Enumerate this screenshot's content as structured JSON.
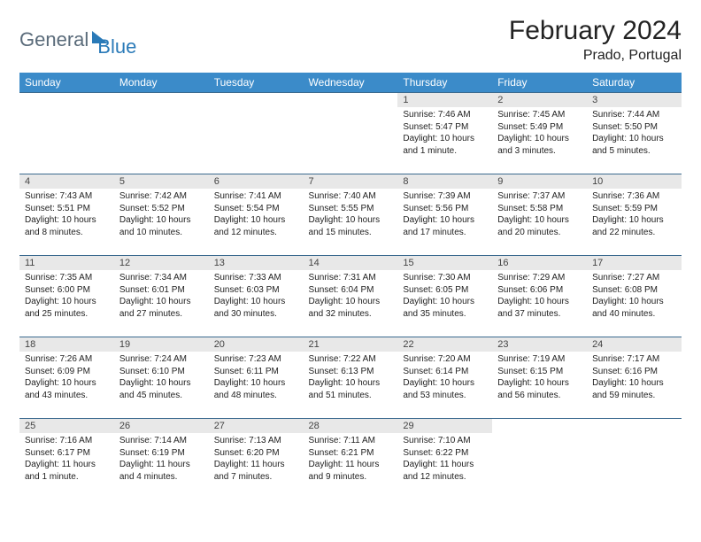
{
  "logo": {
    "part1": "General",
    "part2": "Blue"
  },
  "title": "February 2024",
  "location": "Prado, Portugal",
  "colors": {
    "header_bg": "#3b8bc9",
    "header_text": "#ffffff",
    "daynum_bg": "#e8e8e8",
    "border": "#3b6a8f",
    "logo_gray": "#5a6b7a",
    "logo_blue": "#2a7ab8"
  },
  "day_names": [
    "Sunday",
    "Monday",
    "Tuesday",
    "Wednesday",
    "Thursday",
    "Friday",
    "Saturday"
  ],
  "layout": {
    "lead_blank": 4,
    "days_in_month": 29
  },
  "days": [
    {
      "n": "1",
      "sunrise": "Sunrise: 7:46 AM",
      "sunset": "Sunset: 5:47 PM",
      "daylight": "Daylight: 10 hours and 1 minute."
    },
    {
      "n": "2",
      "sunrise": "Sunrise: 7:45 AM",
      "sunset": "Sunset: 5:49 PM",
      "daylight": "Daylight: 10 hours and 3 minutes."
    },
    {
      "n": "3",
      "sunrise": "Sunrise: 7:44 AM",
      "sunset": "Sunset: 5:50 PM",
      "daylight": "Daylight: 10 hours and 5 minutes."
    },
    {
      "n": "4",
      "sunrise": "Sunrise: 7:43 AM",
      "sunset": "Sunset: 5:51 PM",
      "daylight": "Daylight: 10 hours and 8 minutes."
    },
    {
      "n": "5",
      "sunrise": "Sunrise: 7:42 AM",
      "sunset": "Sunset: 5:52 PM",
      "daylight": "Daylight: 10 hours and 10 minutes."
    },
    {
      "n": "6",
      "sunrise": "Sunrise: 7:41 AM",
      "sunset": "Sunset: 5:54 PM",
      "daylight": "Daylight: 10 hours and 12 minutes."
    },
    {
      "n": "7",
      "sunrise": "Sunrise: 7:40 AM",
      "sunset": "Sunset: 5:55 PM",
      "daylight": "Daylight: 10 hours and 15 minutes."
    },
    {
      "n": "8",
      "sunrise": "Sunrise: 7:39 AM",
      "sunset": "Sunset: 5:56 PM",
      "daylight": "Daylight: 10 hours and 17 minutes."
    },
    {
      "n": "9",
      "sunrise": "Sunrise: 7:37 AM",
      "sunset": "Sunset: 5:58 PM",
      "daylight": "Daylight: 10 hours and 20 minutes."
    },
    {
      "n": "10",
      "sunrise": "Sunrise: 7:36 AM",
      "sunset": "Sunset: 5:59 PM",
      "daylight": "Daylight: 10 hours and 22 minutes."
    },
    {
      "n": "11",
      "sunrise": "Sunrise: 7:35 AM",
      "sunset": "Sunset: 6:00 PM",
      "daylight": "Daylight: 10 hours and 25 minutes."
    },
    {
      "n": "12",
      "sunrise": "Sunrise: 7:34 AM",
      "sunset": "Sunset: 6:01 PM",
      "daylight": "Daylight: 10 hours and 27 minutes."
    },
    {
      "n": "13",
      "sunrise": "Sunrise: 7:33 AM",
      "sunset": "Sunset: 6:03 PM",
      "daylight": "Daylight: 10 hours and 30 minutes."
    },
    {
      "n": "14",
      "sunrise": "Sunrise: 7:31 AM",
      "sunset": "Sunset: 6:04 PM",
      "daylight": "Daylight: 10 hours and 32 minutes."
    },
    {
      "n": "15",
      "sunrise": "Sunrise: 7:30 AM",
      "sunset": "Sunset: 6:05 PM",
      "daylight": "Daylight: 10 hours and 35 minutes."
    },
    {
      "n": "16",
      "sunrise": "Sunrise: 7:29 AM",
      "sunset": "Sunset: 6:06 PM",
      "daylight": "Daylight: 10 hours and 37 minutes."
    },
    {
      "n": "17",
      "sunrise": "Sunrise: 7:27 AM",
      "sunset": "Sunset: 6:08 PM",
      "daylight": "Daylight: 10 hours and 40 minutes."
    },
    {
      "n": "18",
      "sunrise": "Sunrise: 7:26 AM",
      "sunset": "Sunset: 6:09 PM",
      "daylight": "Daylight: 10 hours and 43 minutes."
    },
    {
      "n": "19",
      "sunrise": "Sunrise: 7:24 AM",
      "sunset": "Sunset: 6:10 PM",
      "daylight": "Daylight: 10 hours and 45 minutes."
    },
    {
      "n": "20",
      "sunrise": "Sunrise: 7:23 AM",
      "sunset": "Sunset: 6:11 PM",
      "daylight": "Daylight: 10 hours and 48 minutes."
    },
    {
      "n": "21",
      "sunrise": "Sunrise: 7:22 AM",
      "sunset": "Sunset: 6:13 PM",
      "daylight": "Daylight: 10 hours and 51 minutes."
    },
    {
      "n": "22",
      "sunrise": "Sunrise: 7:20 AM",
      "sunset": "Sunset: 6:14 PM",
      "daylight": "Daylight: 10 hours and 53 minutes."
    },
    {
      "n": "23",
      "sunrise": "Sunrise: 7:19 AM",
      "sunset": "Sunset: 6:15 PM",
      "daylight": "Daylight: 10 hours and 56 minutes."
    },
    {
      "n": "24",
      "sunrise": "Sunrise: 7:17 AM",
      "sunset": "Sunset: 6:16 PM",
      "daylight": "Daylight: 10 hours and 59 minutes."
    },
    {
      "n": "25",
      "sunrise": "Sunrise: 7:16 AM",
      "sunset": "Sunset: 6:17 PM",
      "daylight": "Daylight: 11 hours and 1 minute."
    },
    {
      "n": "26",
      "sunrise": "Sunrise: 7:14 AM",
      "sunset": "Sunset: 6:19 PM",
      "daylight": "Daylight: 11 hours and 4 minutes."
    },
    {
      "n": "27",
      "sunrise": "Sunrise: 7:13 AM",
      "sunset": "Sunset: 6:20 PM",
      "daylight": "Daylight: 11 hours and 7 minutes."
    },
    {
      "n": "28",
      "sunrise": "Sunrise: 7:11 AM",
      "sunset": "Sunset: 6:21 PM",
      "daylight": "Daylight: 11 hours and 9 minutes."
    },
    {
      "n": "29",
      "sunrise": "Sunrise: 7:10 AM",
      "sunset": "Sunset: 6:22 PM",
      "daylight": "Daylight: 11 hours and 12 minutes."
    }
  ]
}
